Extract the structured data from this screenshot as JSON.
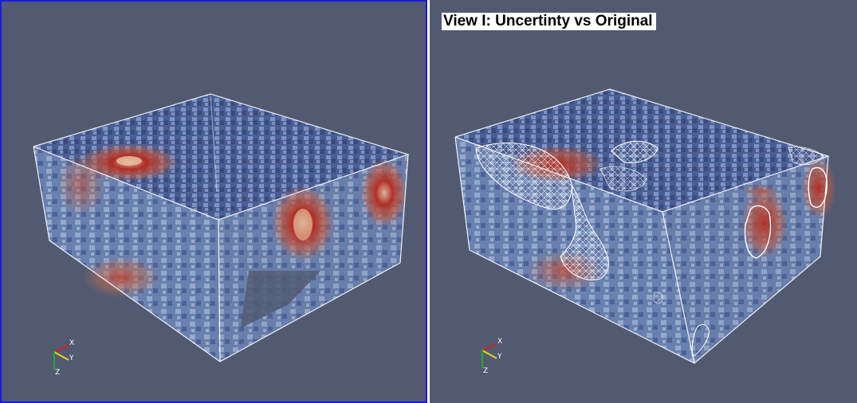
{
  "views": {
    "left": {
      "title": "",
      "active": true,
      "axes": {
        "x_label": "X",
        "y_label": "Y",
        "z_label": "Z"
      }
    },
    "right": {
      "title": "View I: Uncertinty vs Original",
      "active": false,
      "axes": {
        "x_label": "X",
        "y_label": "Y",
        "z_label": "Z"
      }
    }
  },
  "colors": {
    "background": "#525a72",
    "active_border": "#1a1adc",
    "volume_blue": "#6f8fc8",
    "volume_dark": "#2e3f73",
    "hotspot_red": "#b32a20",
    "box_outline": "#ffffff",
    "axis_x": "#d42020",
    "axis_y": "#e8d21a",
    "axis_z": "#1fb01f"
  }
}
